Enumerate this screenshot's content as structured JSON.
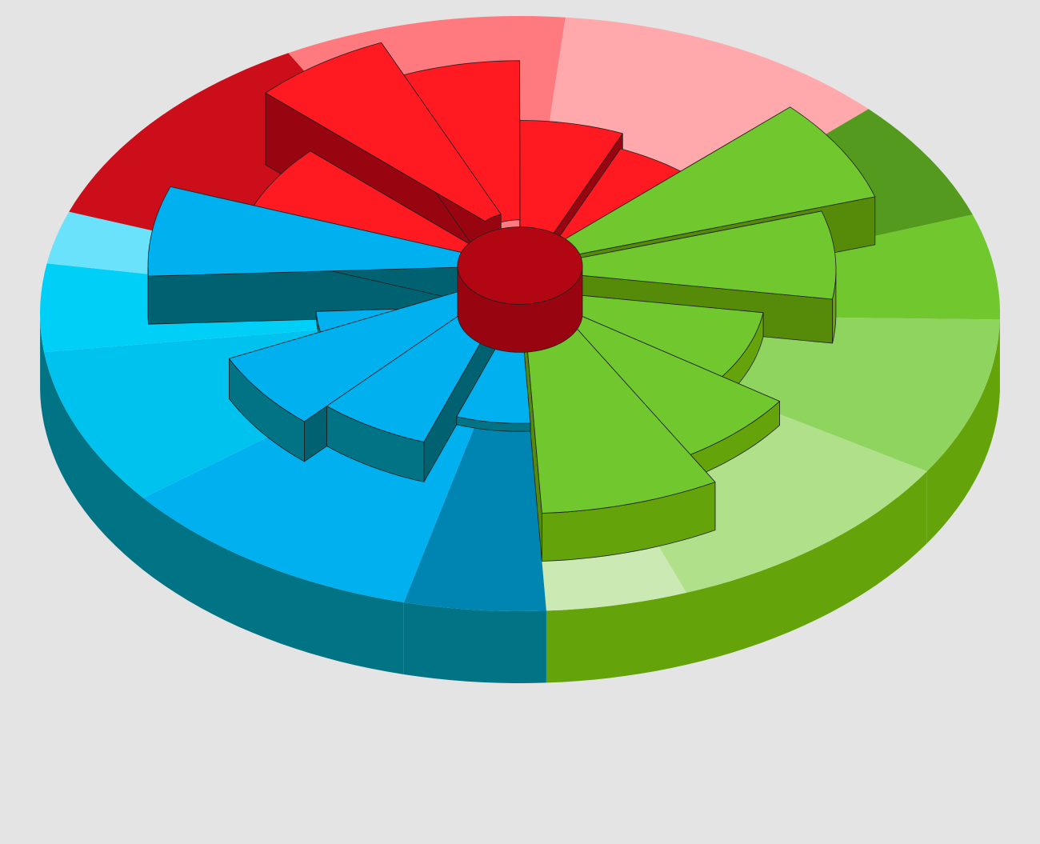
{
  "chart_data": {
    "type": "pie",
    "variant": "3d-radial-sunburst",
    "title": "",
    "legend": "none",
    "colors": {
      "background": "#e4e4e4",
      "red": "#ff1a22",
      "red_dark": "#b30613",
      "red_mid": "#cc0e1a",
      "red_light": "#ff7a7e",
      "red_pale": "#ffa9ac",
      "green": "#70c72e",
      "green_dark": "#64a30a",
      "green_deep": "#549a1e",
      "green_light": "#8ed45e",
      "green_pale": "#b1e08a",
      "green_paler": "#cbeab3",
      "blue": "#00b0ef",
      "blue_dark": "#007385",
      "blue_mid": "#00c2ee",
      "blue_light": "#00cff7",
      "blue_pale": "#6be2fb",
      "blue_deep": "#0085b2"
    },
    "outer_ring": [
      {
        "group": "red",
        "value": 12,
        "color": "red_mid"
      },
      {
        "group": "red",
        "value": 10,
        "color": "red_light"
      },
      {
        "group": "red",
        "value": 12,
        "color": "red_pale"
      },
      {
        "group": "green",
        "value": 7,
        "color": "green_deep"
      },
      {
        "group": "green",
        "value": 6,
        "color": "green"
      },
      {
        "group": "green",
        "value": 9,
        "color": "green_light"
      },
      {
        "group": "green",
        "value": 11,
        "color": "green_pale"
      },
      {
        "group": "green",
        "value": 5,
        "color": "green_paler"
      },
      {
        "group": "blue",
        "value": 5,
        "color": "blue_deep"
      },
      {
        "group": "blue",
        "value": 11,
        "color": "blue"
      },
      {
        "group": "blue",
        "value": 9,
        "color": "blue_mid"
      },
      {
        "group": "blue",
        "value": 5,
        "color": "blue_light"
      },
      {
        "group": "blue",
        "value": 3,
        "color": "blue_pale"
      }
    ],
    "inner_sectors": [
      {
        "group": "red",
        "value": 0.6,
        "height": 1.0,
        "color": "red"
      },
      {
        "group": "red",
        "value": 0.82,
        "height": 1.8,
        "color": "red"
      },
      {
        "group": "red",
        "value": 0.66,
        "height": 1.6,
        "color": "red"
      },
      {
        "group": "red",
        "value": 0.5,
        "height": 0.8,
        "color": "red"
      },
      {
        "group": "red",
        "value": 0.48,
        "height": 0.5,
        "color": "red"
      },
      {
        "group": "green",
        "value": 0.9,
        "height": 1.2,
        "color": "green"
      },
      {
        "group": "green",
        "value": 0.7,
        "height": 1.1,
        "color": "green"
      },
      {
        "group": "green",
        "value": 0.45,
        "height": 0.6,
        "color": "green"
      },
      {
        "group": "green",
        "value": 0.7,
        "height": 0.6,
        "color": "green"
      },
      {
        "group": "green",
        "value": 1.0,
        "height": 1.2,
        "color": "green"
      },
      {
        "group": "blue",
        "value": 0.25,
        "height": 0.2,
        "color": "blue"
      },
      {
        "group": "blue",
        "value": 0.6,
        "height": 1.0,
        "color": "blue"
      },
      {
        "group": "blue",
        "value": 0.72,
        "height": 1.0,
        "color": "blue"
      },
      {
        "group": "blue",
        "value": 0.3,
        "height": 0.2,
        "color": "blue"
      },
      {
        "group": "blue",
        "value": 0.9,
        "height": 1.2,
        "color": "blue"
      }
    ],
    "hub_color": "red_dark"
  }
}
